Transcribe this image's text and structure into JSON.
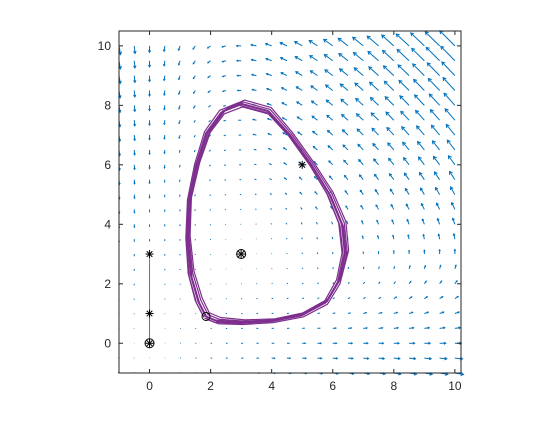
{
  "chart_data": {
    "type": "scatter",
    "title": "",
    "xlabel": "",
    "ylabel": "",
    "xlim": [
      -1,
      10.2
    ],
    "ylim": [
      -1,
      10.5
    ],
    "x_ticks": [
      0,
      2,
      4,
      6,
      8,
      10
    ],
    "y_ticks": [
      0,
      2,
      4,
      6,
      8,
      10
    ],
    "grid": false,
    "legend": "none",
    "colors": {
      "quiver": "#0072bd",
      "cycle": "#7e2f8e",
      "segment": "#d95319",
      "axes": "#262626"
    },
    "vector_field": {
      "description_type": "quiver",
      "x_range": [
        -1,
        10
      ],
      "y_range": [
        -1,
        10
      ],
      "step": 0.5
    },
    "series": [
      {
        "kind": "limit-cycle",
        "points": [
          [
            1.85,
            0.9
          ],
          [
            2.2,
            0.75
          ],
          [
            3.0,
            0.7
          ],
          [
            4.0,
            0.75
          ],
          [
            5.0,
            0.95
          ],
          [
            5.8,
            1.4
          ],
          [
            6.2,
            2.1
          ],
          [
            6.4,
            3.0
          ],
          [
            6.3,
            4.0
          ],
          [
            5.9,
            5.0
          ],
          [
            5.3,
            6.0
          ],
          [
            4.6,
            7.0
          ],
          [
            3.9,
            7.8
          ],
          [
            3.0,
            8.05
          ],
          [
            2.4,
            7.8
          ],
          [
            1.9,
            7.1
          ],
          [
            1.55,
            6.0
          ],
          [
            1.3,
            4.8
          ],
          [
            1.25,
            3.5
          ],
          [
            1.35,
            2.3
          ],
          [
            1.6,
            1.4
          ],
          [
            1.85,
            0.9
          ]
        ]
      },
      {
        "kind": "segment",
        "points": [
          [
            0,
            0
          ],
          [
            0,
            3
          ]
        ]
      }
    ],
    "markers": [
      {
        "x": 0,
        "y": 3,
        "symbol": "star"
      },
      {
        "x": 0,
        "y": 1,
        "symbol": "star"
      },
      {
        "x": 0,
        "y": 0,
        "symbol": "star-circle"
      },
      {
        "x": 3,
        "y": 3,
        "symbol": "star-circle"
      },
      {
        "x": 5,
        "y": 6,
        "symbol": "star"
      },
      {
        "x": 1.85,
        "y": 0.9,
        "symbol": "circle"
      }
    ]
  }
}
